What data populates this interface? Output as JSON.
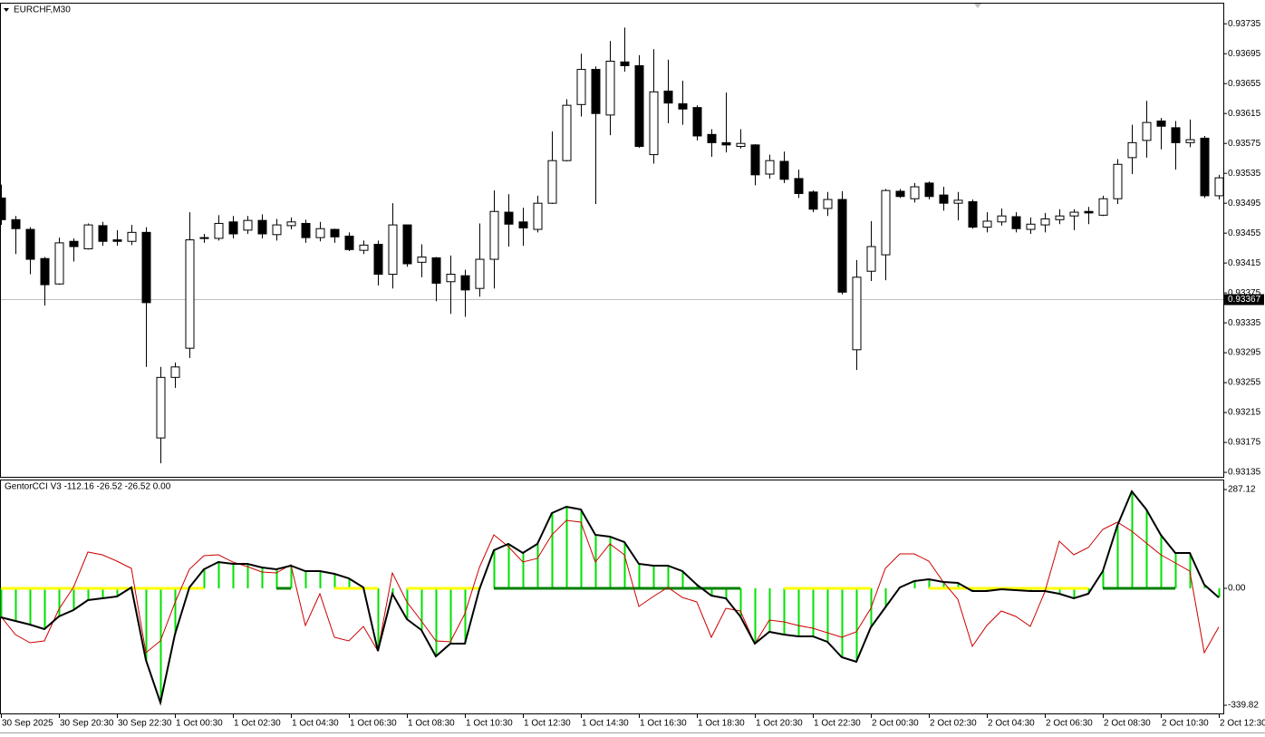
{
  "chart_data": [
    {
      "type": "candlestick",
      "title": "EURCHF,M30",
      "categories": [
        "30 Sep 2025",
        null,
        null,
        null,
        "30 Sep 20:30",
        null,
        null,
        null,
        "30 Sep 22:30",
        null,
        null,
        null,
        "1 Oct 00:30",
        null,
        null,
        null,
        "1 Oct 02:30",
        null,
        null,
        null,
        "1 Oct 04:30",
        null,
        null,
        null,
        "1 Oct 06:30",
        null,
        null,
        null,
        "1 Oct 08:30",
        null,
        null,
        null,
        "1 Oct 10:30",
        null,
        null,
        null,
        "1 Oct 12:30",
        null,
        null,
        null,
        "1 Oct 14:30",
        null,
        null,
        null,
        "1 Oct 16:30",
        null,
        null,
        null,
        "1 Oct 18:30",
        null,
        null,
        null,
        "1 Oct 20:30",
        null,
        null,
        null,
        "1 Oct 22:30",
        null,
        null,
        null,
        "2 Oct 00:30",
        null,
        null,
        null,
        "2 Oct 02:30",
        null,
        null,
        null,
        "2 Oct 04:30",
        null,
        null,
        null,
        "2 Oct 06:30",
        null,
        null,
        null,
        "2 Oct 08:30",
        null,
        null,
        null,
        "2 Oct 10:30",
        null,
        null,
        null,
        "2 Oct 12:30"
      ],
      "open": [
        0.93502,
        0.93473,
        0.9346,
        0.93421,
        0.93387,
        0.93444,
        0.93434,
        0.93465,
        0.93446,
        0.93444,
        0.93456,
        0.93181,
        0.93262,
        0.93301,
        0.93448,
        0.93448,
        0.9347,
        0.93459,
        0.93472,
        0.93453,
        0.93465,
        0.93468,
        0.93449,
        0.9346,
        0.93451,
        0.93432,
        0.9344,
        0.934,
        0.93466,
        0.93416,
        0.93422,
        0.9339,
        0.93398,
        0.93381,
        0.9342,
        0.93483,
        0.9347,
        0.9346,
        0.93495,
        0.93552,
        0.93627,
        0.93674,
        0.93613,
        0.93684,
        0.93679,
        0.9356,
        0.93645,
        0.93628,
        0.93623,
        0.93587,
        0.93576,
        0.93571,
        0.93573,
        0.93534,
        0.93551,
        0.93528,
        0.9351,
        0.93488,
        0.935,
        0.93299,
        0.93404,
        0.93426,
        0.93511,
        0.93501,
        0.93522,
        0.93506,
        0.93495,
        0.93497,
        0.93463,
        0.9347,
        0.93477,
        0.9346,
        0.93466,
        0.93473,
        0.93478,
        0.93484,
        0.93479,
        0.93501,
        0.93556,
        0.93579,
        0.93605,
        0.93596,
        0.93576,
        0.93582,
        0.93505
      ],
      "high": [
        0.9352,
        0.93478,
        0.93463,
        0.93423,
        0.93449,
        0.93448,
        0.93468,
        0.9347,
        0.93459,
        0.93466,
        0.93463,
        0.93276,
        0.93282,
        0.93483,
        0.93454,
        0.93479,
        0.93478,
        0.93478,
        0.9348,
        0.93474,
        0.93476,
        0.93473,
        0.9347,
        0.93461,
        0.93456,
        0.93445,
        0.93445,
        0.93495,
        0.93466,
        0.9344,
        0.93423,
        0.93425,
        0.93406,
        0.93468,
        0.93512,
        0.93507,
        0.93489,
        0.93505,
        0.93591,
        0.93634,
        0.93695,
        0.93678,
        0.93712,
        0.9373,
        0.93693,
        0.93701,
        0.93687,
        0.93659,
        0.93626,
        0.93594,
        0.93643,
        0.93594,
        0.93574,
        0.9356,
        0.93564,
        0.9354,
        0.93512,
        0.9351,
        0.93511,
        0.93419,
        0.93471,
        0.93514,
        0.93514,
        0.93522,
        0.93524,
        0.93517,
        0.9351,
        0.935,
        0.93483,
        0.93488,
        0.93483,
        0.93476,
        0.93482,
        0.93487,
        0.93487,
        0.9349,
        0.93505,
        0.93554,
        0.936,
        0.93632,
        0.93609,
        0.93605,
        0.93607,
        0.93585,
        0.93533
      ],
      "low": [
        0.93466,
        0.93427,
        0.934,
        0.93358,
        0.93386,
        0.93417,
        0.93433,
        0.93438,
        0.93438,
        0.93439,
        0.93276,
        0.93147,
        0.93248,
        0.93288,
        0.93442,
        0.93445,
        0.93448,
        0.93454,
        0.93448,
        0.93445,
        0.9346,
        0.93442,
        0.93444,
        0.93442,
        0.93431,
        0.93427,
        0.93385,
        0.93381,
        0.9341,
        0.93396,
        0.93364,
        0.93347,
        0.93343,
        0.9337,
        0.93381,
        0.93437,
        0.93438,
        0.93456,
        0.93494,
        0.93551,
        0.93611,
        0.93494,
        0.93586,
        0.93671,
        0.93569,
        0.93548,
        0.93602,
        0.936,
        0.93579,
        0.93557,
        0.93563,
        0.93568,
        0.93519,
        0.93528,
        0.93522,
        0.93502,
        0.93483,
        0.93478,
        0.93373,
        0.93272,
        0.93391,
        0.93392,
        0.93502,
        0.93496,
        0.935,
        0.93485,
        0.93472,
        0.93461,
        0.93456,
        0.93465,
        0.93456,
        0.93454,
        0.93456,
        0.93467,
        0.93459,
        0.93467,
        0.93478,
        0.93494,
        0.93534,
        0.93556,
        0.93567,
        0.9354,
        0.9357,
        0.93502,
        0.935
      ],
      "close": [
        0.93473,
        0.93461,
        0.9342,
        0.93386,
        0.93442,
        0.93437,
        0.93466,
        0.93444,
        0.93444,
        0.93456,
        0.93362,
        0.93262,
        0.93276,
        0.93446,
        0.93449,
        0.93468,
        0.93454,
        0.93472,
        0.93454,
        0.93466,
        0.9347,
        0.93449,
        0.93461,
        0.9345,
        0.93433,
        0.93439,
        0.934,
        0.93466,
        0.93414,
        0.93423,
        0.93388,
        0.934,
        0.93379,
        0.9342,
        0.93484,
        0.93467,
        0.93462,
        0.93495,
        0.93552,
        0.93626,
        0.93674,
        0.93615,
        0.93685,
        0.93679,
        0.93571,
        0.93644,
        0.93629,
        0.93621,
        0.93585,
        0.93576,
        0.93573,
        0.93575,
        0.93533,
        0.93552,
        0.93527,
        0.93508,
        0.93487,
        0.935,
        0.93376,
        0.93396,
        0.93437,
        0.93512,
        0.93504,
        0.93517,
        0.93504,
        0.93495,
        0.93499,
        0.93463,
        0.93471,
        0.93478,
        0.93461,
        0.93467,
        0.93474,
        0.93478,
        0.93483,
        0.93482,
        0.93501,
        0.93547,
        0.93576,
        0.93603,
        0.93598,
        0.93576,
        0.9358,
        0.93505,
        0.93529
      ],
      "ylim": [
        0.93129,
        0.93762
      ],
      "yticks": [
        0.93735,
        0.93695,
        0.93655,
        0.93615,
        0.93575,
        0.93535,
        0.93495,
        0.93455,
        0.93415,
        0.93375,
        0.93335,
        0.93295,
        0.93255,
        0.93215,
        0.93175,
        0.93135
      ],
      "current_price": 0.93367,
      "up_color": "#ffffff",
      "down_color": "#000000"
    },
    {
      "type": "indicator",
      "title": "GentorCCI V3 -112.16 -26.52 -26.52 0.00",
      "ylim": [
        -339.82,
        287.12
      ],
      "yticks": [
        287.12,
        {
          "value": 0,
          "label": "0.00"
        },
        -339.82
      ],
      "series": [
        {
          "color": "#000000",
          "values": [
            -84.3,
            -94.8,
            -105.4,
            -118.5,
            -81.7,
            -63.2,
            -34.2,
            -29.0,
            -23.7,
            2.6,
            -208.1,
            -331.9,
            -134.3,
            2.6,
            55.3,
            76.4,
            71.1,
            71.1,
            60.6,
            55.3,
            65.9,
            50.0,
            50.0,
            42.1,
            29.0,
            2.6,
            -181.7,
            -15.8,
            -89.6,
            -121.2,
            -197.6,
            -160.7,
            -160.7,
            -2.6,
            110.6,
            129.1,
            102.7,
            129.1,
            218.6,
            237.1,
            229.2,
            155.4,
            150.1,
            134.3,
            71.1,
            65.9,
            65.9,
            50.0,
            10.5,
            -21.1,
            -29.0,
            -81.7,
            -160.7,
            -126.4,
            -134.3,
            -139.6,
            -139.6,
            -155.4,
            -200.2,
            -213.4,
            -113.3,
            -55.3,
            2.6,
            21.1,
            26.3,
            18.4,
            15.8,
            -7.9,
            -7.9,
            -2.6,
            -5.3,
            -7.9,
            -7.9,
            -15.8,
            -29.0,
            -15.8,
            50.0,
            181.7,
            281.8,
            229.2,
            155.4,
            102.7,
            102.7,
            10.5,
            -26.52
          ]
        },
        {
          "color": "#cc0000",
          "values": [
            -81.7,
            -134.3,
            -158.0,
            -152.8,
            -60.6,
            2.6,
            105.4,
            97.5,
            79.0,
            57.9,
            -187.0,
            -152.8,
            -42.1,
            55.3,
            94.8,
            97.5,
            76.4,
            63.2,
            47.4,
            44.8,
            68.5,
            -108.0,
            -15.8,
            -142.2,
            -152.8,
            -110.6,
            -181.7,
            44.8,
            -39.5,
            -94.8,
            -152.8,
            -155.4,
            -73.8,
            60.6,
            155.4,
            121.2,
            76.4,
            86.9,
            155.4,
            197.6,
            192.3,
            76.4,
            129.1,
            97.5,
            -52.7,
            -23.7,
            2.6,
            -26.3,
            -39.5,
            -142.2,
            -57.9,
            -65.9,
            -160.7,
            -92.2,
            -97.5,
            -108.0,
            -115.9,
            -129.1,
            -142.2,
            -126.4,
            -57.9,
            57.9,
            100.1,
            100.1,
            79.0,
            18.4,
            -31.6,
            -168.6,
            -108.0,
            -65.9,
            -81.7,
            -110.6,
            -10.5,
            137.0,
            97.5,
            118.5,
            171.2,
            192.3,
            165.9,
            131.7,
            97.5,
            73.8,
            50.0,
            -187.0,
            -112.16
          ]
        }
      ],
      "histogram_color": "#00e000",
      "zero_line": {
        "up_color": "#008000",
        "down_color": "#ffff00",
        "values": [
          -1,
          -1,
          -1,
          -1,
          -1,
          -1,
          -1,
          -1,
          -1,
          -1,
          -1,
          -1,
          -1,
          -1,
          -1,
          null,
          null,
          null,
          null,
          1,
          1,
          null,
          null,
          -1,
          -1,
          -1,
          -1,
          null,
          -1,
          -1,
          -1,
          -1,
          -1,
          -1,
          1,
          1,
          1,
          1,
          1,
          1,
          1,
          1,
          1,
          1,
          1,
          1,
          1,
          1,
          1,
          1,
          1,
          1,
          null,
          null,
          -1,
          -1,
          -1,
          -1,
          -1,
          -1,
          -1,
          null,
          null,
          null,
          -1,
          -1,
          -1,
          -1,
          -1,
          -1,
          -1,
          -1,
          -1,
          -1,
          -1,
          -1,
          1,
          1,
          1,
          1,
          1,
          1,
          null,
          null,
          null
        ]
      }
    }
  ]
}
